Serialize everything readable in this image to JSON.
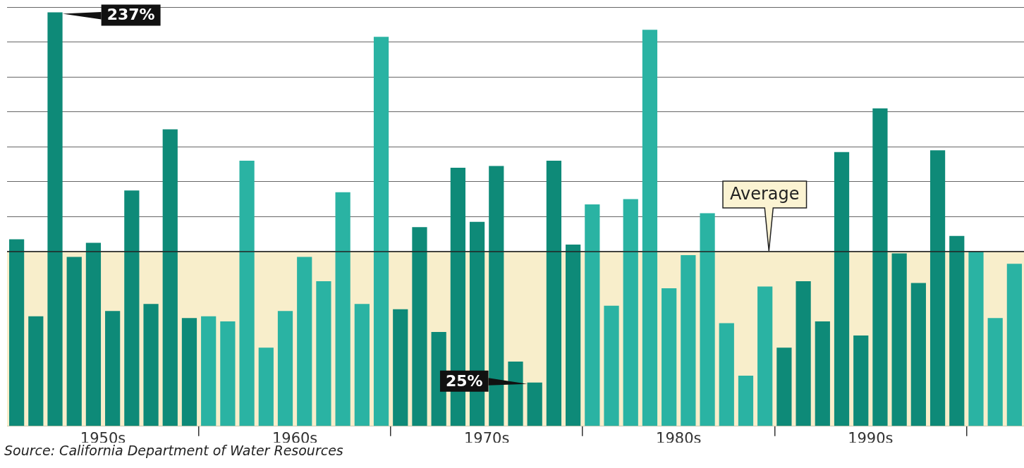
{
  "chart_data": {
    "type": "bar",
    "categories": [
      null,
      null,
      null,
      null,
      "1950s",
      null,
      null,
      null,
      null,
      null,
      null,
      null,
      null,
      null,
      "1960s",
      null,
      null,
      null,
      null,
      null,
      null,
      null,
      null,
      null,
      "1970s",
      null,
      null,
      null,
      null,
      null,
      null,
      null,
      null,
      null,
      "1980s",
      null,
      null,
      null,
      null,
      null,
      null,
      null,
      null,
      null,
      "1990s",
      null,
      null,
      null,
      null,
      null,
      null,
      null,
      null
    ],
    "values": [
      107,
      63,
      237,
      97,
      105,
      66,
      135,
      70,
      170,
      62,
      63,
      60,
      152,
      45,
      66,
      97,
      83,
      134,
      70,
      223,
      67,
      114,
      54,
      148,
      117,
      149,
      37,
      25,
      152,
      104,
      127,
      69,
      130,
      227,
      79,
      98,
      122,
      59,
      29,
      80,
      45,
      83,
      60,
      157,
      52,
      182,
      99,
      82,
      158,
      109,
      100,
      62,
      93
    ],
    "colors": [
      "#0e8a78",
      "#0e8a78",
      "#0e8a78",
      "#0e8a78",
      "#0e8a78",
      "#0e8a78",
      "#0e8a78",
      "#0e8a78",
      "#0e8a78",
      "#0e8a78",
      "#2ab3a3",
      "#2ab3a3",
      "#2ab3a3",
      "#2ab3a3",
      "#2ab3a3",
      "#2ab3a3",
      "#2ab3a3",
      "#2ab3a3",
      "#2ab3a3",
      "#2ab3a3",
      "#0e8a78",
      "#0e8a78",
      "#0e8a78",
      "#0e8a78",
      "#0e8a78",
      "#0e8a78",
      "#0e8a78",
      "#0e8a78",
      "#0e8a78",
      "#0e8a78",
      "#2ab3a3",
      "#2ab3a3",
      "#2ab3a3",
      "#2ab3a3",
      "#2ab3a3",
      "#2ab3a3",
      "#2ab3a3",
      "#2ab3a3",
      "#2ab3a3",
      "#2ab3a3",
      "#0e8a78",
      "#0e8a78",
      "#0e8a78",
      "#0e8a78",
      "#0e8a78",
      "#0e8a78",
      "#0e8a78",
      "#0e8a78",
      "#0e8a78",
      "#0e8a78",
      "#2ab3a3",
      "#2ab3a3",
      "#2ab3a3"
    ],
    "value_labels": [
      null,
      null,
      "237%",
      null,
      null,
      null,
      null,
      null,
      null,
      null,
      null,
      null,
      null,
      null,
      null,
      null,
      null,
      null,
      null,
      null,
      null,
      null,
      null,
      null,
      null,
      null,
      null,
      "25%",
      null,
      null,
      null,
      null,
      null,
      null,
      null,
      null,
      null,
      null,
      null,
      null,
      null,
      null,
      null,
      null,
      null,
      null,
      null,
      null,
      null,
      null,
      null,
      null,
      null
    ],
    "ylim": [
      0,
      240
    ],
    "tick_labels": "x",
    "grid": "y",
    "legend": false,
    "bands": [
      {
        "axis": "y",
        "from": 0,
        "to": 100,
        "color": "#f8eecb"
      }
    ],
    "ref_lines": [
      {
        "axis": "y",
        "value": 100,
        "label": "Average",
        "color": "#222222"
      }
    ],
    "annotations": [
      "Source: California Department of Water Resources"
    ]
  }
}
